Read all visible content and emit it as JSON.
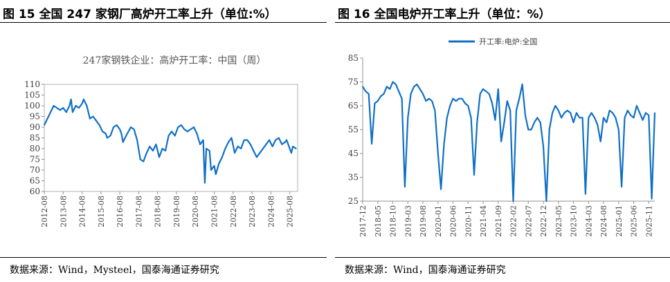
{
  "panels": [
    {
      "figure_title": "图 15 全国 247 家钢厂高炉开工率上升（单位:%）",
      "source": "数据来源：Wind，Mysteel，国泰海通证券研究"
    },
    {
      "figure_title": "图 16 全国电炉开工率上升（单位：%）",
      "source": "数据来源：Wind，国泰海通证券研究"
    }
  ],
  "chart_data": [
    {
      "type": "line",
      "title": "247家钢铁企业：高炉开工率：中国（周）",
      "xlabel": "",
      "ylabel": "",
      "ylim": [
        60,
        110
      ],
      "yticks": [
        "60",
        "65",
        "70",
        "75",
        "80",
        "85",
        "90",
        "95",
        "100",
        "105",
        "110"
      ],
      "xticks": [
        "2012-08",
        "2013-08",
        "2014-08",
        "2015-08",
        "2016-08",
        "2017-08",
        "2018-08",
        "2019-08",
        "2020-08",
        "2021-08",
        "2022-08",
        "2023-08",
        "2024-08",
        "2025-08"
      ],
      "xrange": [
        "2012-08",
        "2026-01"
      ],
      "legend": "none",
      "grid": false,
      "color": "#0f6fc6",
      "series": [
        {
          "values": [
            [
              "2012-08",
              91
            ],
            [
              "2012-10",
              94
            ],
            [
              "2012-12",
              97
            ],
            [
              "2013-02",
              100
            ],
            [
              "2013-04",
              99
            ],
            [
              "2013-06",
              98
            ],
            [
              "2013-08",
              99
            ],
            [
              "2013-10",
              97
            ],
            [
              "2013-12",
              100
            ],
            [
              "2014-01",
              103
            ],
            [
              "2014-02",
              97
            ],
            [
              "2014-04",
              100
            ],
            [
              "2014-06",
              99
            ],
            [
              "2014-08",
              101
            ],
            [
              "2014-09",
              103
            ],
            [
              "2014-11",
              100
            ],
            [
              "2015-01",
              94
            ],
            [
              "2015-03",
              95
            ],
            [
              "2015-05",
              93
            ],
            [
              "2015-07",
              91
            ],
            [
              "2015-09",
              88
            ],
            [
              "2015-11",
              87
            ],
            [
              "2015-12",
              85
            ],
            [
              "2016-02",
              86
            ],
            [
              "2016-04",
              90
            ],
            [
              "2016-06",
              91
            ],
            [
              "2016-08",
              89
            ],
            [
              "2016-09",
              87
            ],
            [
              "2016-10",
              83
            ],
            [
              "2016-12",
              86
            ],
            [
              "2017-03",
              90
            ],
            [
              "2017-05",
              89
            ],
            [
              "2017-07",
              84
            ],
            [
              "2017-09",
              75
            ],
            [
              "2017-11",
              74
            ],
            [
              "2018-01",
              78
            ],
            [
              "2018-03",
              81
            ],
            [
              "2018-05",
              79
            ],
            [
              "2018-07",
              82
            ],
            [
              "2018-09",
              76
            ],
            [
              "2018-11",
              80
            ],
            [
              "2019-01",
              79
            ],
            [
              "2019-03",
              86
            ],
            [
              "2019-05",
              88
            ],
            [
              "2019-07",
              86
            ],
            [
              "2019-09",
              90
            ],
            [
              "2019-11",
              91
            ],
            [
              "2020-01",
              89
            ],
            [
              "2020-03",
              88
            ],
            [
              "2020-05",
              89
            ],
            [
              "2020-07",
              90
            ],
            [
              "2020-09",
              87
            ],
            [
              "2020-11",
              82
            ],
            [
              "2021-01",
              84
            ],
            [
              "2021-02",
              64
            ],
            [
              "2021-03",
              80
            ],
            [
              "2021-05",
              79
            ],
            [
              "2021-06",
              70
            ],
            [
              "2021-08",
              72
            ],
            [
              "2021-09",
              68
            ],
            [
              "2021-11",
              73
            ],
            [
              "2022-01",
              76
            ],
            [
              "2022-03",
              80
            ],
            [
              "2022-05",
              83
            ],
            [
              "2022-07",
              85
            ],
            [
              "2022-09",
              78
            ],
            [
              "2022-11",
              81
            ],
            [
              "2023-01",
              80
            ],
            [
              "2023-03",
              84
            ],
            [
              "2023-05",
              84
            ],
            [
              "2023-07",
              82
            ],
            [
              "2023-09",
              79
            ],
            [
              "2023-11",
              76
            ],
            [
              "2024-01",
              78
            ],
            [
              "2024-03",
              80
            ],
            [
              "2024-05",
              82
            ],
            [
              "2024-07",
              84
            ],
            [
              "2024-09",
              81
            ],
            [
              "2024-11",
              84
            ],
            [
              "2025-01",
              85
            ],
            [
              "2025-03",
              82
            ],
            [
              "2025-05",
              83
            ],
            [
              "2025-06",
              84
            ],
            [
              "2025-08",
              80
            ],
            [
              "2025-09",
              78
            ],
            [
              "2025-10",
              81
            ],
            [
              "2025-12",
              80
            ]
          ]
        }
      ]
    },
    {
      "type": "line",
      "title": "",
      "xlabel": "",
      "ylabel": "",
      "ylim": [
        25,
        85
      ],
      "yticks": [
        "25",
        "35",
        "45",
        "55",
        "65",
        "75",
        "85"
      ],
      "xticks": [
        "2017-12",
        "2018-05",
        "2018-10",
        "2019-03",
        "2019-08",
        "2020-01",
        "2020-06",
        "2020-11",
        "2021-04",
        "2021-09",
        "2022-02",
        "2022-07",
        "2022-12",
        "2023-05",
        "2023-10",
        "2024-03",
        "2024-08",
        "2025-01",
        "2025-06",
        "2025-11"
      ],
      "xrange": [
        "2017-12",
        "2026-01"
      ],
      "legend": "top-center",
      "grid": false,
      "color": "#0f6fc6",
      "series": [
        {
          "name": "开工率:电炉:全国",
          "values": [
            [
              "2017-12",
              73
            ],
            [
              "2018-01",
              71
            ],
            [
              "2018-02",
              70
            ],
            [
              "2018-03",
              49
            ],
            [
              "2018-04",
              66
            ],
            [
              "2018-05",
              67
            ],
            [
              "2018-06",
              69
            ],
            [
              "2018-07",
              70
            ],
            [
              "2018-08",
              73
            ],
            [
              "2018-09",
              72
            ],
            [
              "2018-10",
              75
            ],
            [
              "2018-11",
              74
            ],
            [
              "2018-12",
              71
            ],
            [
              "2019-01",
              68
            ],
            [
              "2019-02",
              31
            ],
            [
              "2019-03",
              60
            ],
            [
              "2019-04",
              70
            ],
            [
              "2019-05",
              73
            ],
            [
              "2019-06",
              74
            ],
            [
              "2019-07",
              72
            ],
            [
              "2019-08",
              70
            ],
            [
              "2019-09",
              67
            ],
            [
              "2019-10",
              68
            ],
            [
              "2019-11",
              67
            ],
            [
              "2019-12",
              63
            ],
            [
              "2020-01",
              45
            ],
            [
              "2020-02",
              30
            ],
            [
              "2020-03",
              49
            ],
            [
              "2020-04",
              60
            ],
            [
              "2020-05",
              65
            ],
            [
              "2020-06",
              68
            ],
            [
              "2020-07",
              67
            ],
            [
              "2020-08",
              68
            ],
            [
              "2020-09",
              68
            ],
            [
              "2020-10",
              66
            ],
            [
              "2020-11",
              65
            ],
            [
              "2020-12",
              60
            ],
            [
              "2021-01",
              36
            ],
            [
              "2021-02",
              58
            ],
            [
              "2021-03",
              70
            ],
            [
              "2021-04",
              72
            ],
            [
              "2021-05",
              71
            ],
            [
              "2021-06",
              70
            ],
            [
              "2021-07",
              66
            ],
            [
              "2021-08",
              59
            ],
            [
              "2021-09",
              72
            ],
            [
              "2021-10",
              50
            ],
            [
              "2021-11",
              58
            ],
            [
              "2021-12",
              67
            ],
            [
              "2022-01",
              63
            ],
            [
              "2022-02",
              25
            ],
            [
              "2022-03",
              63
            ],
            [
              "2022-04",
              68
            ],
            [
              "2022-05",
              74
            ],
            [
              "2022-06",
              61
            ],
            [
              "2022-07",
              55
            ],
            [
              "2022-08",
              55
            ],
            [
              "2022-09",
              58
            ],
            [
              "2022-10",
              60
            ],
            [
              "2022-11",
              58
            ],
            [
              "2022-12",
              48
            ],
            [
              "2023-01",
              25
            ],
            [
              "2023-02",
              55
            ],
            [
              "2023-03",
              62
            ],
            [
              "2023-04",
              65
            ],
            [
              "2023-05",
              63
            ],
            [
              "2023-06",
              60
            ],
            [
              "2023-07",
              62
            ],
            [
              "2023-08",
              63
            ],
            [
              "2023-09",
              62
            ],
            [
              "2023-10",
              58
            ],
            [
              "2023-11",
              62
            ],
            [
              "2023-12",
              60
            ],
            [
              "2024-01",
              60
            ],
            [
              "2024-02",
              28
            ],
            [
              "2024-03",
              60
            ],
            [
              "2024-04",
              62
            ],
            [
              "2024-05",
              60
            ],
            [
              "2024-06",
              57
            ],
            [
              "2024-07",
              50
            ],
            [
              "2024-08",
              60
            ],
            [
              "2024-09",
              58
            ],
            [
              "2024-10",
              63
            ],
            [
              "2024-11",
              62
            ],
            [
              "2024-12",
              60
            ],
            [
              "2025-01",
              55
            ],
            [
              "2025-02",
              31
            ],
            [
              "2025-03",
              60
            ],
            [
              "2025-04",
              63
            ],
            [
              "2025-05",
              61
            ],
            [
              "2025-06",
              60
            ],
            [
              "2025-07",
              65
            ],
            [
              "2025-08",
              62
            ],
            [
              "2025-09",
              59
            ],
            [
              "2025-10",
              62
            ],
            [
              "2025-11",
              61
            ],
            [
              "2025-12",
              26
            ],
            [
              "2026-01",
              62
            ]
          ]
        }
      ]
    }
  ]
}
